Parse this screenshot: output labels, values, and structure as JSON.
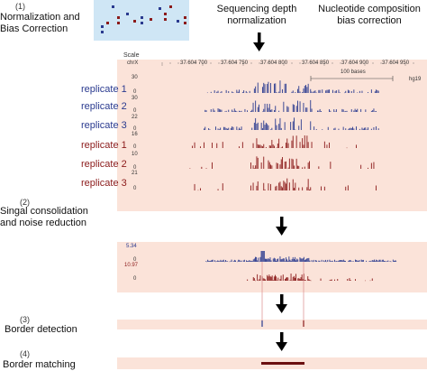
{
  "steps": [
    {
      "num": "(1)",
      "title_line1": "Normalization and",
      "title_line2": "Bias Correction"
    },
    {
      "num": "(2)",
      "title_line1": "Singal consolidation",
      "title_line2": "and noise reduction"
    },
    {
      "num": "(3)",
      "title_line1": "Border detection"
    },
    {
      "num": "(4)",
      "title_line1": "Border matching"
    }
  ],
  "headers": {
    "seq_depth": [
      "Sequencing depth",
      "normalization"
    ],
    "nucleotide": [
      "Nucleotide composition",
      "bias correction"
    ]
  },
  "browser": {
    "scale_label": "Scale",
    "chr_label": "chrX",
    "coords": [
      "37 604 700",
      "37 604 750",
      "37 604 800",
      "37 604 850",
      "37 604 900",
      "37 604 950"
    ],
    "scale_bar": "100 bases",
    "genome": "hg19",
    "tracks": [
      {
        "label": "replicate 1",
        "max": "30",
        "min": "0",
        "color": "#2a3a8f"
      },
      {
        "label": "replicate 2",
        "max": "30",
        "min": "0",
        "color": "#2a3a8f"
      },
      {
        "label": "replicate 3",
        "max": "22",
        "min": "0",
        "color": "#2a3a8f"
      },
      {
        "label": "replicate 1",
        "max": "16",
        "min": "0",
        "color": "#8b1a1a"
      },
      {
        "label": "replicate 2",
        "max": "10",
        "min": "0",
        "color": "#8b1a1a"
      },
      {
        "label": "replicate 3",
        "max": "21",
        "min": "0",
        "color": "#8b1a1a"
      }
    ]
  },
  "consolidated": {
    "tracks": [
      {
        "max": "5.34",
        "min": "0",
        "color": "#2a3a8f"
      },
      {
        "max": "10.97",
        "min": "0",
        "color": "#8b1a1a"
      }
    ]
  },
  "colors": {
    "forward": "#2a3a8f",
    "reverse": "#8b1a1a",
    "panel": "#fbe3d9",
    "thumbnail": "#cfe6f5",
    "border_line": "#d98b8b"
  }
}
